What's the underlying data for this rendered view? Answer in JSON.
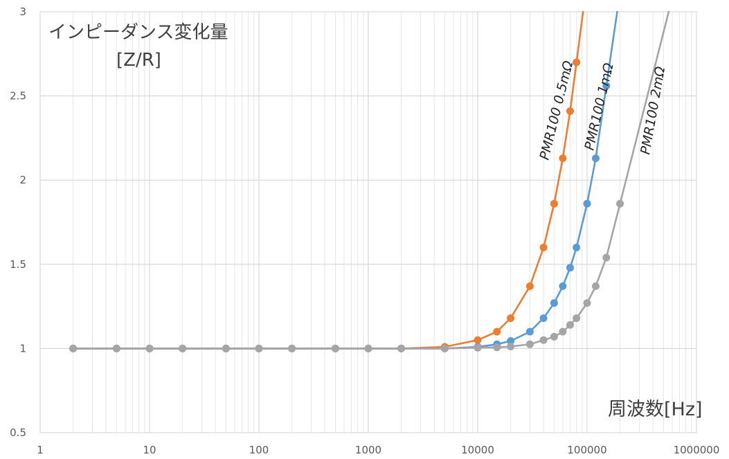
{
  "chart_data": {
    "type": "line",
    "xscale": "log",
    "xlim": [
      1,
      1000000
    ],
    "ylim": [
      0.5,
      3
    ],
    "xticks": [
      "1",
      "10",
      "100",
      "1000",
      "10000",
      "100000",
      "1000000"
    ],
    "yticks": [
      "0.5",
      "1",
      "1.5",
      "2",
      "2.5",
      "3"
    ],
    "ylabel_line1": "インピーダンス変化量",
    "ylabel_line2": "[Z/R]",
    "xlabel": "周波数[Hz]",
    "grid": true,
    "series": [
      {
        "name": "PMR100 0.5mΩ",
        "color": "#ED7D31",
        "points": [
          [
            2,
            1.0
          ],
          [
            5,
            1.0
          ],
          [
            10,
            1.0
          ],
          [
            20,
            1.0
          ],
          [
            50,
            1.0
          ],
          [
            100,
            1.0
          ],
          [
            200,
            1.0
          ],
          [
            500,
            1.0
          ],
          [
            1000,
            1.0
          ],
          [
            2000,
            1.0
          ],
          [
            5000,
            1.01
          ],
          [
            10000,
            1.05
          ],
          [
            15000,
            1.1
          ],
          [
            20000,
            1.18
          ],
          [
            30000,
            1.37
          ],
          [
            40000,
            1.6
          ],
          [
            50000,
            1.86
          ],
          [
            60000,
            2.13
          ],
          [
            70000,
            2.41
          ],
          [
            80000,
            2.7
          ]
        ]
      },
      {
        "name": "PMR100 1mΩ",
        "color": "#5B9BD5",
        "points": [
          [
            2,
            1.0
          ],
          [
            5,
            1.0
          ],
          [
            10,
            1.0
          ],
          [
            20,
            1.0
          ],
          [
            50,
            1.0
          ],
          [
            100,
            1.0
          ],
          [
            200,
            1.0
          ],
          [
            500,
            1.0
          ],
          [
            1000,
            1.0
          ],
          [
            2000,
            1.0
          ],
          [
            5000,
            1.0
          ],
          [
            10000,
            1.01
          ],
          [
            15000,
            1.025
          ],
          [
            20000,
            1.045
          ],
          [
            30000,
            1.1
          ],
          [
            40000,
            1.18
          ],
          [
            50000,
            1.27
          ],
          [
            60000,
            1.37
          ],
          [
            70000,
            1.48
          ],
          [
            80000,
            1.6
          ],
          [
            100000,
            1.86
          ],
          [
            120000,
            2.13
          ],
          [
            150000,
            2.56
          ]
        ]
      },
      {
        "name": "PMR100 2mΩ",
        "color": "#A5A5A5",
        "points": [
          [
            2,
            1.0
          ],
          [
            5,
            1.0
          ],
          [
            10,
            1.0
          ],
          [
            20,
            1.0
          ],
          [
            50,
            1.0
          ],
          [
            100,
            1.0
          ],
          [
            200,
            1.0
          ],
          [
            500,
            1.0
          ],
          [
            1000,
            1.0
          ],
          [
            2000,
            1.0
          ],
          [
            5000,
            1.0
          ],
          [
            10000,
            1.005
          ],
          [
            15000,
            1.007
          ],
          [
            20000,
            1.012
          ],
          [
            30000,
            1.025
          ],
          [
            40000,
            1.05
          ],
          [
            50000,
            1.07
          ],
          [
            60000,
            1.1
          ],
          [
            70000,
            1.14
          ],
          [
            80000,
            1.18
          ],
          [
            100000,
            1.27
          ],
          [
            120000,
            1.37
          ],
          [
            150000,
            1.54
          ],
          [
            200000,
            1.86
          ]
        ]
      }
    ]
  }
}
